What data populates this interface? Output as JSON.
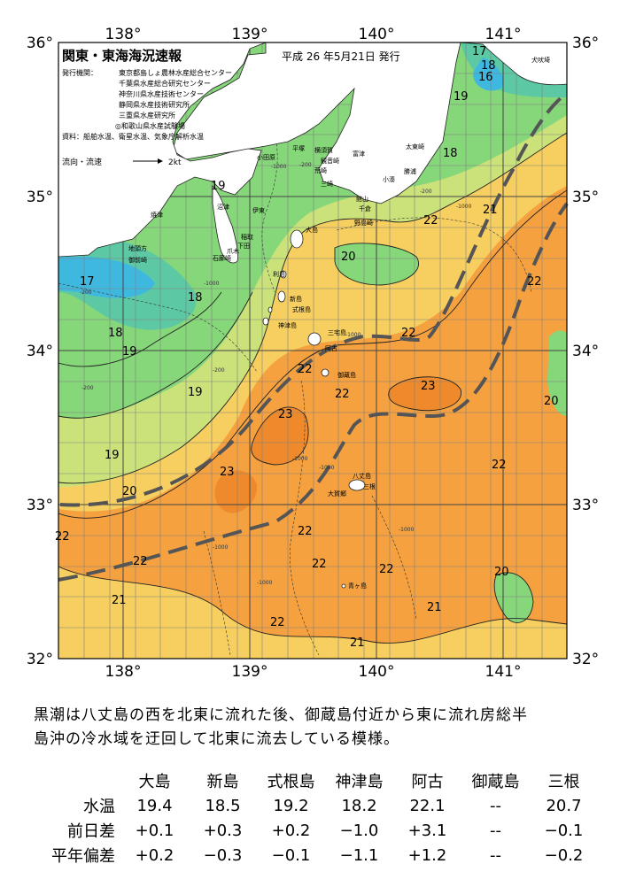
{
  "header": {
    "title": "関東・東海海況速報",
    "issue_date": "平成 26 年5月21日 発行",
    "issuers_label": "発行機関：",
    "issuers": [
      "東京都島しょ農林水産総合センター",
      "千葉県水産総合研究センター",
      "神奈川県水産技術センター",
      "静岡県水産技術研究所",
      "三重県水産研究所",
      "◎和歌山県水産試験場"
    ],
    "sources": "資料：船舶水温、衛星水温、気象庁解析水温",
    "current_legend": "流向・流速",
    "current_scale": "2kt"
  },
  "map": {
    "lon_ticks": [
      "138°",
      "139°",
      "140°",
      "141°"
    ],
    "lat_ticks": [
      "36°",
      "35°",
      "34°",
      "33°",
      "32°"
    ],
    "isotherm_labels": [
      "17",
      "18",
      "16",
      "19",
      "18",
      "19",
      "20",
      "21",
      "22",
      "17",
      "18",
      "18",
      "19",
      "19",
      "19",
      "20",
      "22",
      "22",
      "23",
      "22",
      "23",
      "22",
      "23",
      "22",
      "20",
      "22",
      "22",
      "22",
      "20",
      "21",
      "22",
      "22",
      "21",
      "21"
    ],
    "depth_labels": [
      "-200",
      "-1000",
      "-200",
      "-200",
      "-1000",
      "-1000",
      "-200",
      "-1000",
      "-1000",
      "-1000",
      "-200",
      "-1000",
      "-1000",
      "-1000"
    ],
    "place_names": [
      "平塚",
      "横須賀",
      "観音崎",
      "荒崎",
      "三崎",
      "小田原",
      "富津",
      "館山",
      "千倉",
      "野島崎",
      "大島",
      "小湊",
      "勝浦",
      "太東崎",
      "犬吠埼",
      "焼津",
      "沼津",
      "伊東",
      "稲取",
      "下田",
      "爪木",
      "石廊崎",
      "地頭方",
      "御前崎",
      "利島",
      "新島",
      "式根島",
      "神津島",
      "三宅島",
      "阿古",
      "御蔵島",
      "八丈島",
      "三根",
      "大賀郷",
      "青ヶ島"
    ],
    "colors": {
      "cold_blue": "#3fb8e0",
      "teal": "#5cc9a4",
      "green": "#86d67a",
      "yellow_green": "#cbe27a",
      "yellow": "#f6cf60",
      "orange": "#f5a13f",
      "deep_orange": "#ee8a2c",
      "land": "#ffffff",
      "kuroshio_path": "#555555"
    }
  },
  "summary": [
    "黒潮は八丈島の西を北東に流れた後、御蔵島付近から東に流れ房総半",
    "島沖の冷水域を迂回して北東に流去している模様。"
  ],
  "table": {
    "stations": [
      "大島",
      "新島",
      "式根島",
      "神津島",
      "阿古",
      "御蔵島",
      "三根"
    ],
    "rows": [
      {
        "label": "水温",
        "values": [
          "19.4",
          "18.5",
          "19.2",
          "18.2",
          "22.1",
          "--",
          "20.7"
        ]
      },
      {
        "label": "前日差",
        "values": [
          "+0.1",
          "+0.3",
          "+0.2",
          "−1.0",
          "+3.1",
          "--",
          "−0.1"
        ]
      },
      {
        "label": "平年偏差",
        "values": [
          "+0.2",
          "−0.3",
          "−0.1",
          "−1.1",
          "+1.2",
          "--",
          "−0.2"
        ]
      }
    ]
  }
}
